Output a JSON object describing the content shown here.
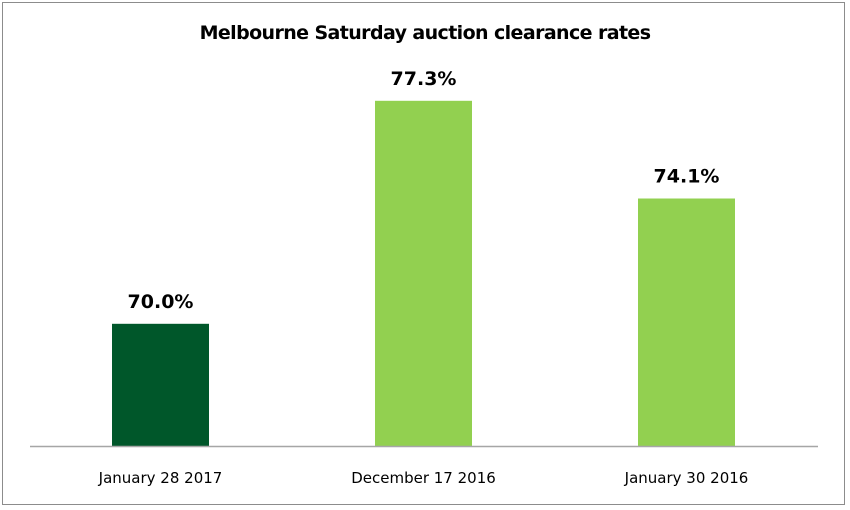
{
  "chart_data": {
    "type": "bar",
    "title": "Melbourne Saturday auction clearance rates",
    "xlabel": "",
    "ylabel": "",
    "categories": [
      "January 28 2017",
      "December 17 2016",
      "January 30 2016"
    ],
    "values": [
      70.0,
      77.3,
      74.1
    ],
    "value_labels": [
      "70.0%",
      "77.3%",
      "74.1%"
    ],
    "bar_colors": [
      "#00572a",
      "#92d050",
      "#92d050"
    ],
    "axis_color": "#a6a6a6",
    "grid": false,
    "legend": "none"
  }
}
